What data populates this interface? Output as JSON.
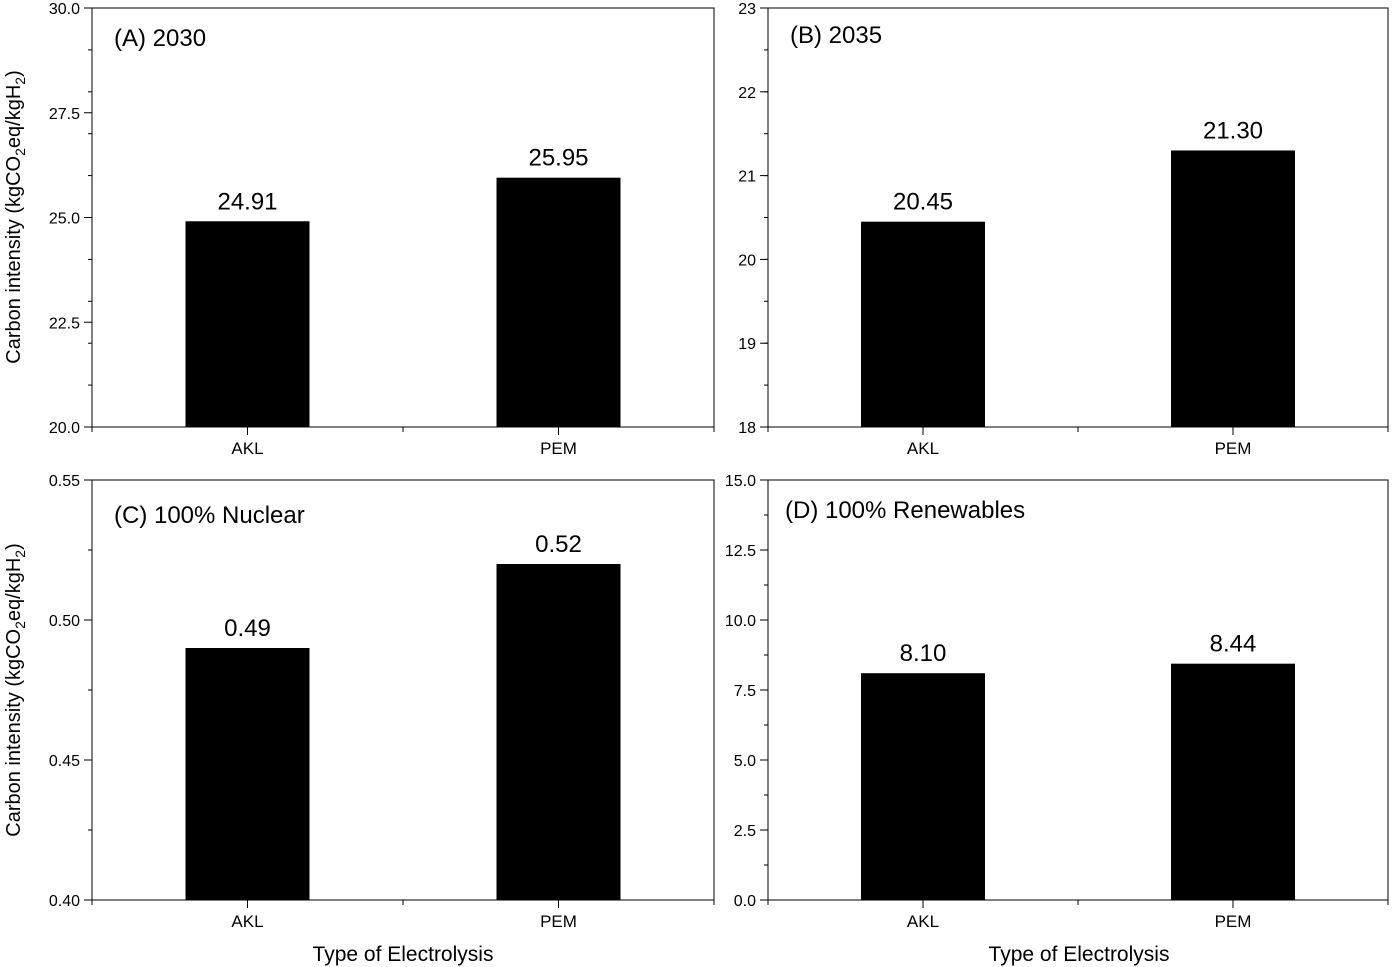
{
  "figure": {
    "ylabel_main": "Carbon intensity (kgCO",
    "ylabel_sub1": "2",
    "ylabel_mid": "eq/kgH",
    "ylabel_sub2": "2",
    "ylabel_close": ")",
    "xlabel": "Type of Electrolysis"
  },
  "chart_data": [
    {
      "type": "bar",
      "panel_label": "(A) 2030",
      "categories": [
        "AKL",
        "PEM"
      ],
      "values": [
        24.91,
        25.95
      ],
      "data_labels": [
        "24.91",
        "25.95"
      ],
      "ylim": [
        20.0,
        30.0
      ],
      "yticks": [
        "20.0",
        "22.5",
        "25.0",
        "27.5",
        "30.0"
      ],
      "ylabel": "Carbon intensity (kgCO2eq/kgH2)",
      "xlabel": "",
      "bar_color": "#000000"
    },
    {
      "type": "bar",
      "panel_label": "(B) 2035",
      "categories": [
        "AKL",
        "PEM"
      ],
      "values": [
        20.45,
        21.3
      ],
      "data_labels": [
        "20.45",
        "21.30"
      ],
      "ylim": [
        18,
        23
      ],
      "yticks": [
        "18",
        "19",
        "20",
        "21",
        "22",
        "23"
      ],
      "ylabel": "",
      "xlabel": "",
      "bar_color": "#000000"
    },
    {
      "type": "bar",
      "panel_label": "(C) 100% Nuclear",
      "categories": [
        "AKL",
        "PEM"
      ],
      "values": [
        0.49,
        0.52
      ],
      "data_labels": [
        "0.49",
        "0.52"
      ],
      "ylim": [
        0.4,
        0.55
      ],
      "yticks": [
        "0.40",
        "0.45",
        "0.50",
        "0.55"
      ],
      "ylabel": "Carbon intensity (kgCO2eq/kgH2)",
      "xlabel": "Type of Electrolysis",
      "bar_color": "#000000"
    },
    {
      "type": "bar",
      "panel_label": "(D) 100% Renewables",
      "categories": [
        "AKL",
        "PEM"
      ],
      "values": [
        8.1,
        8.44
      ],
      "data_labels": [
        "8.10",
        "8.44"
      ],
      "ylim": [
        0.0,
        15.0
      ],
      "yticks": [
        "0.0",
        "2.5",
        "5.0",
        "7.5",
        "10.0",
        "12.5",
        "15.0"
      ],
      "ylabel": "",
      "xlabel": "Type of Electrolysis",
      "bar_color": "#000000"
    }
  ]
}
